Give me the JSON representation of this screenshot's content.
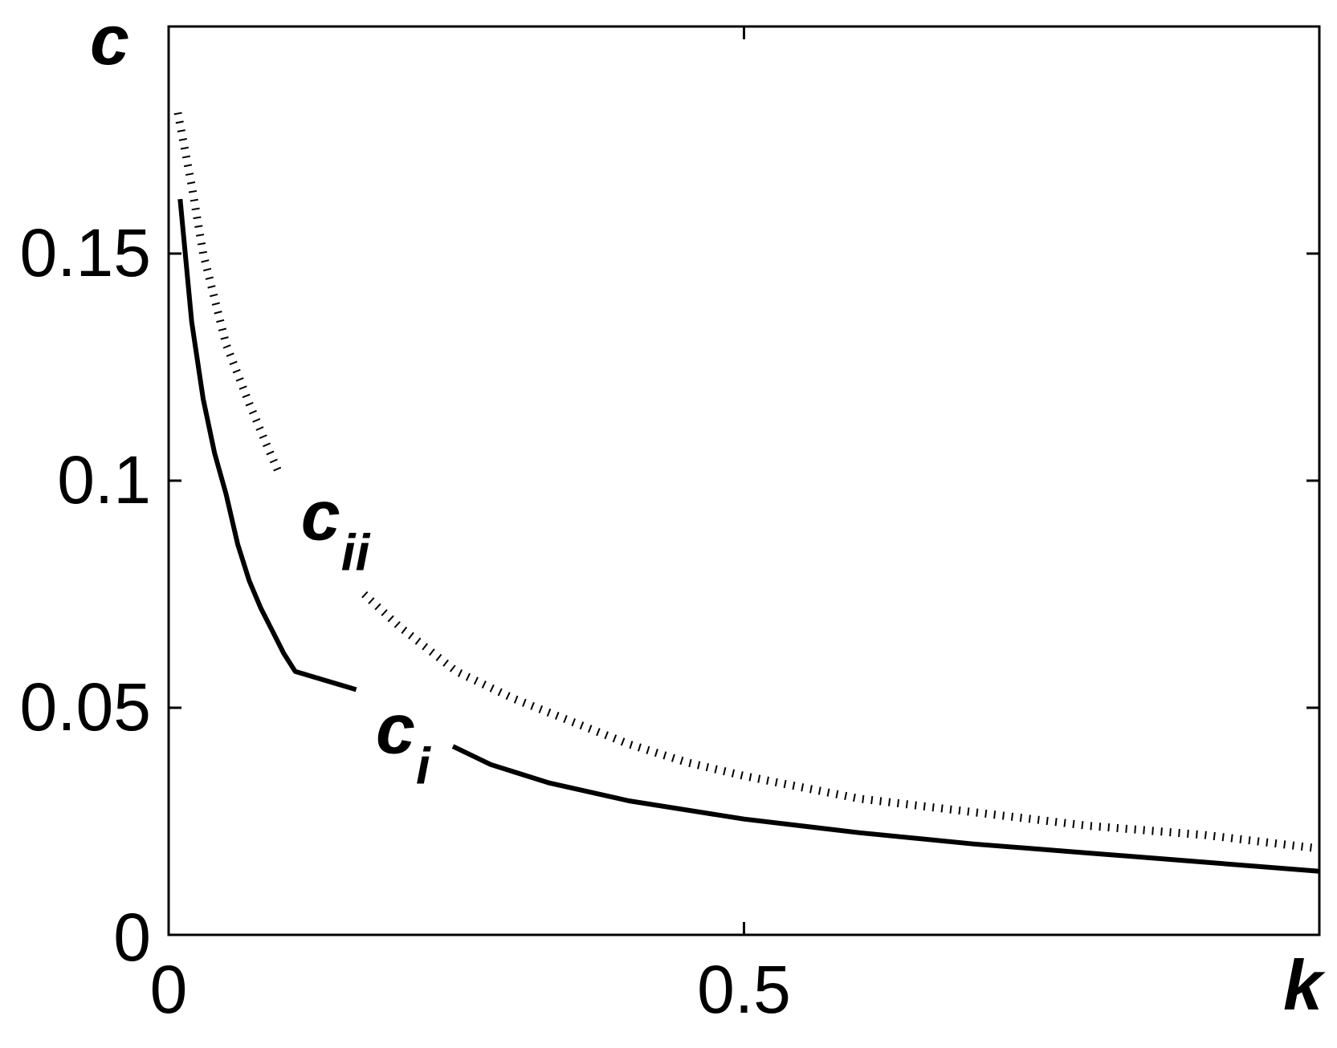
{
  "chart_data": {
    "type": "line",
    "xlabel": "k",
    "ylabel": "c",
    "xlim": [
      0,
      1
    ],
    "ylim": [
      0,
      0.2
    ],
    "xticks": [
      {
        "value": 0,
        "label": "0"
      },
      {
        "value": 0.5,
        "label": "0.5"
      }
    ],
    "yticks": [
      {
        "value": 0,
        "label": "0"
      },
      {
        "value": 0.05,
        "label": "0.05"
      },
      {
        "value": 0.1,
        "label": "0.1"
      },
      {
        "value": 0.15,
        "label": "0.15"
      }
    ],
    "grid": false,
    "series": [
      {
        "name": "c_i",
        "style": "solid",
        "color": "#000000",
        "segments": [
          [
            [
              0.01,
              0.162
            ],
            [
              0.02,
              0.135
            ],
            [
              0.03,
              0.118
            ],
            [
              0.04,
              0.106
            ],
            [
              0.05,
              0.097
            ],
            [
              0.06,
              0.086
            ],
            [
              0.07,
              0.078
            ],
            [
              0.08,
              0.072
            ],
            [
              0.09,
              0.067
            ],
            [
              0.1,
              0.062
            ],
            [
              0.11,
              0.058
            ],
            [
              0.163,
              0.054
            ]
          ],
          [
            [
              0.247,
              0.0415
            ],
            [
              0.28,
              0.0375
            ],
            [
              0.33,
              0.0335
            ],
            [
              0.4,
              0.0295
            ],
            [
              0.5,
              0.0255
            ],
            [
              0.6,
              0.0225
            ],
            [
              0.7,
              0.02
            ],
            [
              0.8,
              0.018
            ],
            [
              0.9,
              0.016
            ],
            [
              1.0,
              0.014
            ]
          ]
        ]
      },
      {
        "name": "c_ii",
        "style": "dotted",
        "color": "#000000",
        "segments": [
          [
            [
              0.008,
              0.181
            ],
            [
              0.02,
              0.165
            ],
            [
              0.03,
              0.15
            ],
            [
              0.05,
              0.13
            ],
            [
              0.07,
              0.117
            ],
            [
              0.085,
              0.108
            ],
            [
              0.097,
              0.101
            ]
          ],
          [
            [
              0.17,
              0.075
            ],
            [
              0.2,
              0.068
            ],
            [
              0.25,
              0.058
            ],
            [
              0.3,
              0.052
            ],
            [
              0.35,
              0.047
            ],
            [
              0.4,
              0.042
            ],
            [
              0.45,
              0.038
            ],
            [
              0.5,
              0.035
            ],
            [
              0.6,
              0.03
            ],
            [
              0.7,
              0.027
            ],
            [
              0.8,
              0.024
            ],
            [
              0.9,
              0.022
            ],
            [
              1.0,
              0.019
            ]
          ]
        ]
      }
    ],
    "annotations": [
      {
        "id": "cii",
        "text": "c",
        "sub": "ii",
        "x": 0.115,
        "y": 0.087
      },
      {
        "id": "ci",
        "text": "c",
        "sub": "i",
        "x": 0.18,
        "y": 0.04
      }
    ]
  }
}
